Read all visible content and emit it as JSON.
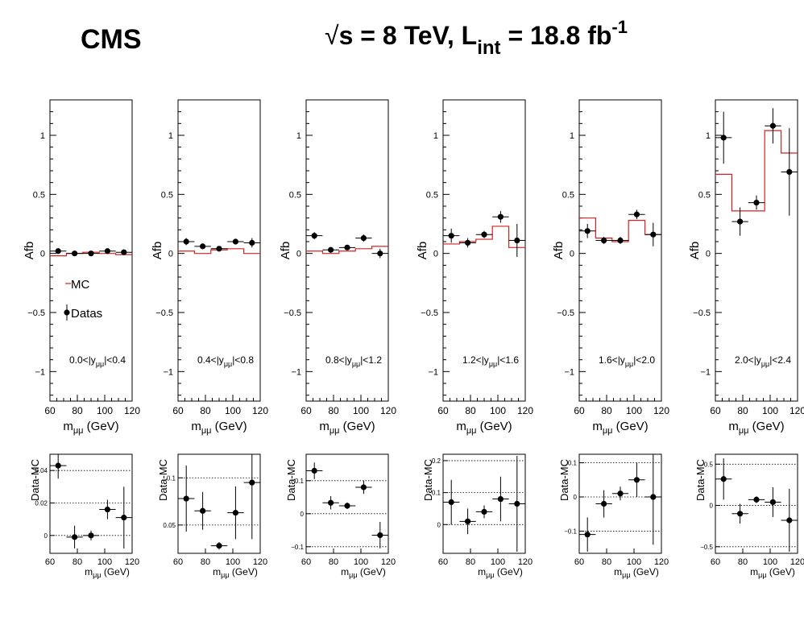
{
  "header": {
    "experiment": "CMS",
    "energy": {
      "prefix": "√",
      "s": "s",
      "mid": " = 8 TeV, L",
      "sub": "int",
      "after": " = 18.8 fb",
      "sup": "-1"
    }
  },
  "legend": {
    "mc_label": "MC",
    "data_label": "Datas"
  },
  "style": {
    "data_color": "#000000",
    "mc_color": "#d62020",
    "grid_style": "dotted"
  },
  "chart_data": {
    "type": "scatter",
    "x_bin_edges": [
      60,
      72,
      84,
      96,
      108,
      120
    ],
    "x_centers": [
      66,
      78,
      90,
      102,
      114
    ],
    "xlim": [
      60,
      120
    ],
    "x_ticks": [
      60,
      80,
      100,
      120
    ],
    "x_tick_labels": [
      "60",
      "80",
      "100",
      "120"
    ],
    "x_label_main": {
      "m": "m",
      "sub": "μμ",
      "unit": " (GeV)"
    },
    "main_ylabel": "Afb",
    "main_ylim": [
      -1.25,
      1.3
    ],
    "main_yticks": [
      -1,
      -0.5,
      0,
      0.5,
      1
    ],
    "main_ytick_labels": [
      "−1",
      "−0.5",
      "0",
      "0.5",
      "1"
    ],
    "ratio_ylabel": "Data-MC",
    "panels": [
      {
        "region": {
          "pre": "0.0<|y",
          "sub": "μμ",
          "post": "|<0.4"
        },
        "data": [
          0.02,
          0.0,
          0.0,
          0.02,
          0.01
        ],
        "data_err": [
          0.02,
          0.02,
          0.02,
          0.02,
          0.02
        ],
        "mc": [
          -0.02,
          0.0,
          0.01,
          0.0,
          -0.01
        ],
        "ratio": [
          0.043,
          -0.001,
          0.0,
          0.016,
          0.011
        ],
        "ratio_err": [
          0.008,
          0.007,
          0.003,
          0.006,
          0.019
        ],
        "ratio_ylim": [
          -0.011,
          0.05
        ],
        "ratio_yticks": [
          0,
          0.02,
          0.04
        ],
        "ratio_ytick_labels": [
          "0",
          "0.02",
          "0.04"
        ],
        "ratio_grid": [
          0,
          0.02,
          0.04
        ]
      },
      {
        "region": {
          "pre": "0.4<|y",
          "sub": "μμ",
          "post": "|<0.8"
        },
        "data": [
          0.1,
          0.06,
          0.04,
          0.1,
          0.09
        ],
        "data_err": [
          0.03,
          0.02,
          0.02,
          0.02,
          0.04
        ],
        "mc": [
          0.02,
          0.0,
          0.03,
          0.04,
          0.0
        ],
        "ratio": [
          0.078,
          0.065,
          0.028,
          0.063,
          0.095
        ],
        "ratio_err": [
          0.035,
          0.02,
          0.004,
          0.028,
          0.06
        ],
        "ratio_ylim": [
          0.02,
          0.125
        ],
        "ratio_yticks": [
          0.05,
          0.1
        ],
        "ratio_ytick_labels": [
          "0.05",
          "0.1"
        ],
        "ratio_grid": [
          0.05,
          0.1
        ]
      },
      {
        "region": {
          "pre": "0.8<|y",
          "sub": "μμ",
          "post": "|<1.2"
        },
        "data": [
          0.15,
          0.03,
          0.05,
          0.13,
          0.0
        ],
        "data_err": [
          0.03,
          0.02,
          0.02,
          0.03,
          0.04
        ],
        "mc": [
          0.02,
          0.0,
          0.02,
          0.04,
          0.06
        ],
        "ratio": [
          0.13,
          0.033,
          0.024,
          0.08,
          -0.065
        ],
        "ratio_err": [
          0.025,
          0.02,
          0.01,
          0.02,
          0.04
        ],
        "ratio_ylim": [
          -0.12,
          0.18
        ],
        "ratio_yticks": [
          -0.1,
          0,
          0.1
        ],
        "ratio_ytick_labels": [
          "−0.1",
          "0",
          "0.1"
        ],
        "ratio_grid": [
          -0.1,
          0,
          0.1
        ]
      },
      {
        "region": {
          "pre": "1.2<|y",
          "sub": "μμ",
          "post": "|<1.6"
        },
        "data": [
          0.15,
          0.09,
          0.16,
          0.31,
          0.11
        ],
        "data_err": [
          0.06,
          0.04,
          0.03,
          0.05,
          0.14
        ],
        "mc": [
          0.08,
          0.1,
          0.12,
          0.23,
          0.05
        ],
        "ratio": [
          0.07,
          0.01,
          0.04,
          0.08,
          0.065
        ],
        "ratio_err": [
          0.07,
          0.04,
          0.02,
          0.07,
          0.15
        ],
        "ratio_ylim": [
          -0.09,
          0.22
        ],
        "ratio_yticks": [
          0,
          0.1,
          0.2
        ],
        "ratio_ytick_labels": [
          "0",
          "0.1",
          "0.2"
        ],
        "ratio_grid": [
          0,
          0.1,
          0.2
        ]
      },
      {
        "region": {
          "pre": "1.6<|y",
          "sub": "μμ",
          "post": "|<2.0"
        },
        "data": [
          0.19,
          0.11,
          0.11,
          0.33,
          0.16
        ],
        "data_err": [
          0.06,
          0.03,
          0.03,
          0.04,
          0.1
        ],
        "mc": [
          0.3,
          0.13,
          0.1,
          0.28,
          0.16
        ],
        "ratio": [
          -0.11,
          -0.02,
          0.01,
          0.05,
          0.0
        ],
        "ratio_err": [
          0.05,
          0.04,
          0.02,
          0.05,
          0.14
        ],
        "ratio_ylim": [
          -0.165,
          0.125
        ],
        "ratio_yticks": [
          -0.1,
          0,
          0.1
        ],
        "ratio_ytick_labels": [
          "−0.1",
          "0",
          "0.1"
        ],
        "ratio_grid": [
          -0.1,
          0,
          0.1
        ]
      },
      {
        "region": {
          "pre": "2.0<|y",
          "sub": "μμ",
          "post": "|<2.4"
        },
        "data": [
          0.98,
          0.27,
          0.43,
          1.08,
          0.69
        ],
        "data_err": [
          0.22,
          0.12,
          0.06,
          0.15,
          0.37
        ],
        "mc": [
          0.67,
          0.36,
          0.36,
          1.04,
          0.85
        ],
        "ratio": [
          0.32,
          -0.1,
          0.07,
          0.04,
          -0.18
        ],
        "ratio_err": [
          0.25,
          0.12,
          0.04,
          0.18,
          0.38
        ],
        "ratio_ylim": [
          -0.58,
          0.62
        ],
        "ratio_yticks": [
          -0.5,
          0,
          0.5
        ],
        "ratio_ytick_labels": [
          "−0.5",
          "0",
          "0.5"
        ],
        "ratio_grid": [
          -0.5,
          0,
          0.5
        ]
      }
    ]
  }
}
